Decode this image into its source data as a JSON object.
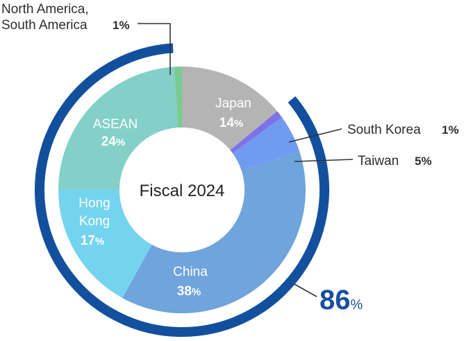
{
  "chart_data": {
    "type": "donut",
    "center_label": "Fiscal 2024",
    "unit": "%",
    "slices": [
      {
        "name": "Japan",
        "value": 14,
        "pct_label": "14",
        "color": "#b4b4b4"
      },
      {
        "name": "South Korea",
        "value": 1,
        "pct_label": "1",
        "color": "#7e72e8"
      },
      {
        "name": "Taiwan",
        "value": 5,
        "pct_label": "5",
        "color": "#6f9cf0"
      },
      {
        "name": "China",
        "value": 38,
        "pct_label": "38",
        "color": "#6fa4dc"
      },
      {
        "name": "Hong Kong",
        "value": 17,
        "pct_label": "17",
        "color": "#74d4f0",
        "label_lines": [
          "Hong",
          "Kong"
        ]
      },
      {
        "name": "ASEAN",
        "value": 24,
        "pct_label": "24",
        "color": "#83d0c8"
      },
      {
        "name": "North America, South America",
        "value": 1,
        "pct_label": "1",
        "color": "#7acb8f",
        "label_lines": [
          "North America,",
          "South America"
        ]
      }
    ],
    "total_arc": {
      "value": 86,
      "label": "86",
      "color": "#12509e",
      "spans": [
        "South Korea",
        "Taiwan",
        "China",
        "Hong Kong",
        "ASEAN"
      ]
    }
  }
}
